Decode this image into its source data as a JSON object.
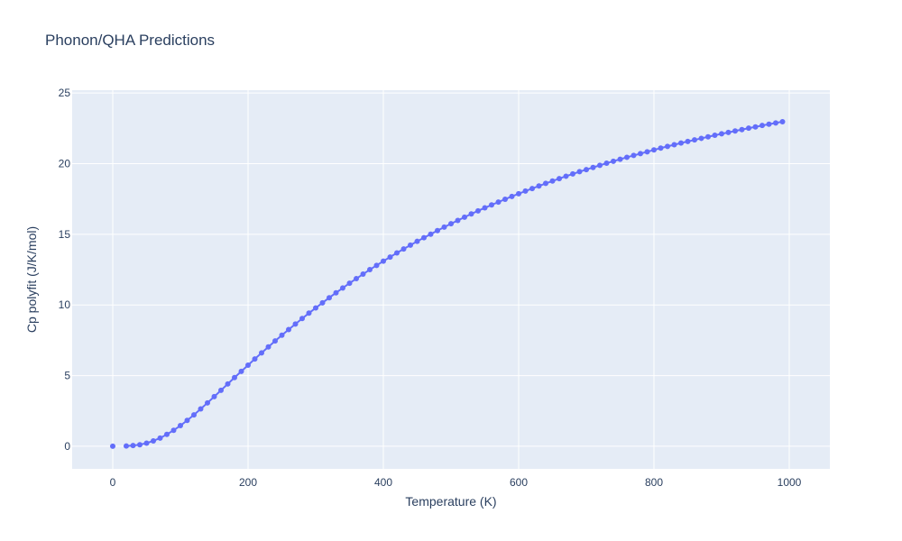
{
  "chart_data": {
    "type": "scatter",
    "mode": "lines+markers",
    "title": "Phonon/QHA Predictions",
    "xlabel": "Temperature (K)",
    "ylabel": "Cp polyfit (J/K/mol)",
    "xlim": [
      -60,
      1060
    ],
    "ylim": [
      -1.6,
      25.2
    ],
    "xticks": [
      0,
      200,
      400,
      600,
      800,
      1000
    ],
    "yticks": [
      0,
      5,
      10,
      15,
      20,
      25
    ],
    "grid": true,
    "colors": {
      "plot_bg": "#e5ecf6",
      "grid": "#ffffff",
      "marker": "#636efa",
      "text": "#2a3f5f"
    },
    "series": [
      {
        "x": [
          0,
          20,
          30,
          40,
          50,
          60,
          70,
          80,
          90,
          100,
          110,
          120,
          130,
          140,
          150,
          160,
          170,
          180,
          190,
          200,
          210,
          220,
          230,
          240,
          250,
          260,
          270,
          280,
          290,
          300,
          310,
          320,
          330,
          340,
          350,
          360,
          370,
          380,
          390,
          400,
          410,
          420,
          430,
          440,
          450,
          460,
          470,
          480,
          490,
          500,
          510,
          520,
          530,
          540,
          550,
          560,
          570,
          580,
          590,
          600,
          610,
          620,
          630,
          640,
          650,
          660,
          670,
          680,
          690,
          700,
          710,
          720,
          730,
          740,
          750,
          760,
          770,
          780,
          790,
          800,
          810,
          820,
          830,
          840,
          850,
          860,
          870,
          880,
          890,
          900,
          910,
          920,
          930,
          940,
          950,
          960,
          970,
          980,
          990
        ],
        "y": [
          0,
          0.02,
          0.05,
          0.11,
          0.22,
          0.38,
          0.58,
          0.84,
          1.13,
          1.46,
          1.83,
          2.22,
          2.64,
          3.07,
          3.51,
          3.96,
          4.41,
          4.86,
          5.3,
          5.74,
          6.18,
          6.61,
          7.03,
          7.45,
          7.86,
          8.26,
          8.65,
          9.04,
          9.42,
          9.79,
          10.15,
          10.51,
          10.86,
          11.2,
          11.54,
          11.86,
          12.18,
          12.5,
          12.8,
          13.1,
          13.39,
          13.68,
          13.96,
          14.23,
          14.5,
          14.76,
          15.01,
          15.26,
          15.51,
          15.75,
          15.98,
          16.21,
          16.44,
          16.66,
          16.87,
          17.08,
          17.28,
          17.48,
          17.68,
          17.87,
          18.06,
          18.24,
          18.42,
          18.6,
          18.77,
          18.94,
          19.11,
          19.27,
          19.43,
          19.58,
          19.73,
          19.88,
          20.03,
          20.17,
          20.31,
          20.45,
          20.58,
          20.71,
          20.84,
          20.97,
          21.1,
          21.22,
          21.34,
          21.46,
          21.57,
          21.68,
          21.79,
          21.9,
          22.01,
          22.11,
          22.21,
          22.31,
          22.41,
          22.51,
          22.6,
          22.7,
          22.79,
          22.88,
          22.97
        ]
      }
    ]
  }
}
